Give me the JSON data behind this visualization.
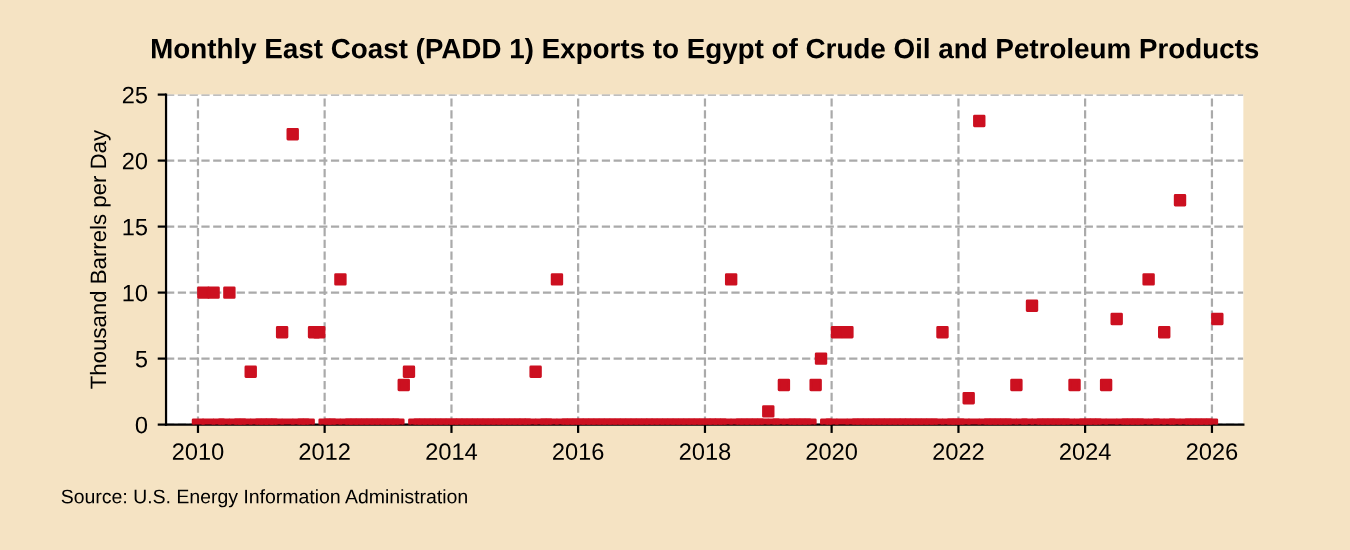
{
  "chart_data": {
    "type": "scatter",
    "title": "Monthly East Coast (PADD 1) Exports to Egypt of Crude Oil and Petroleum Products",
    "ylabel": "Thousand Barrels per Day",
    "annotations": [
      "Source: U.S. Energy Information Administration"
    ],
    "x": [
      "2010-01",
      "2010-02",
      "2010-03",
      "2010-04",
      "2010-05",
      "2010-06",
      "2010-07",
      "2010-08",
      "2010-09",
      "2010-10",
      "2010-11",
      "2010-12",
      "2011-01",
      "2011-02",
      "2011-03",
      "2011-04",
      "2011-05",
      "2011-06",
      "2011-07",
      "2011-08",
      "2011-09",
      "2011-10",
      "2011-11",
      "2011-12",
      "2012-01",
      "2012-02",
      "2012-03",
      "2012-04",
      "2012-05",
      "2012-06",
      "2012-07",
      "2012-08",
      "2012-09",
      "2012-10",
      "2012-11",
      "2012-12",
      "2013-01",
      "2013-02",
      "2013-03",
      "2013-04",
      "2013-05",
      "2013-06",
      "2013-07",
      "2013-08",
      "2013-09",
      "2013-10",
      "2013-11",
      "2013-12",
      "2014-01",
      "2014-02",
      "2014-03",
      "2014-04",
      "2014-05",
      "2014-06",
      "2014-07",
      "2014-08",
      "2014-09",
      "2014-10",
      "2014-11",
      "2014-12",
      "2015-01",
      "2015-02",
      "2015-03",
      "2015-04",
      "2015-05",
      "2015-06",
      "2015-07",
      "2015-08",
      "2015-09",
      "2015-10",
      "2015-11",
      "2015-12",
      "2016-01",
      "2016-02",
      "2016-03",
      "2016-04",
      "2016-05",
      "2016-06",
      "2016-07",
      "2016-08",
      "2016-09",
      "2016-10",
      "2016-11",
      "2016-12",
      "2017-01",
      "2017-02",
      "2017-03",
      "2017-04",
      "2017-05",
      "2017-06",
      "2017-07",
      "2017-08",
      "2017-09",
      "2017-10",
      "2017-11",
      "2017-12",
      "2018-01",
      "2018-02",
      "2018-03",
      "2018-04",
      "2018-05",
      "2018-06",
      "2018-07",
      "2018-08",
      "2018-09",
      "2018-10",
      "2018-11",
      "2018-12",
      "2019-01",
      "2019-02",
      "2019-03",
      "2019-04",
      "2019-05",
      "2019-06",
      "2019-07",
      "2019-08",
      "2019-09",
      "2019-10",
      "2019-11",
      "2019-12",
      "2020-01",
      "2020-02",
      "2020-03",
      "2020-04",
      "2020-05",
      "2020-06",
      "2020-07",
      "2020-08",
      "2020-09",
      "2020-10",
      "2020-11",
      "2020-12",
      "2021-01",
      "2021-02",
      "2021-03",
      "2021-04",
      "2021-05",
      "2021-06",
      "2021-07",
      "2021-08",
      "2021-09",
      "2021-10",
      "2021-11",
      "2021-12",
      "2022-01",
      "2022-02",
      "2022-03",
      "2022-04",
      "2022-05",
      "2022-06",
      "2022-07",
      "2022-08",
      "2022-09",
      "2022-10",
      "2022-11",
      "2022-12",
      "2023-01",
      "2023-02",
      "2023-03",
      "2023-04",
      "2023-05",
      "2023-06",
      "2023-07",
      "2023-08",
      "2023-09",
      "2023-10",
      "2023-11",
      "2023-12",
      "2024-01",
      "2024-02",
      "2024-03",
      "2024-04",
      "2024-05",
      "2024-06",
      "2024-07",
      "2024-08",
      "2024-09",
      "2024-10",
      "2024-11",
      "2024-12",
      "2025-01",
      "2025-02",
      "2025-03",
      "2025-04",
      "2025-05",
      "2025-06",
      "2025-07",
      "2025-08",
      "2025-09",
      "2025-10",
      "2025-11",
      "2025-12",
      "2026-01",
      "2026-02"
    ],
    "series": [
      {
        "color": "#cc1020",
        "values": [
          0,
          10,
          0,
          10,
          0,
          0,
          10,
          0,
          0,
          0,
          4,
          0,
          0,
          0,
          0,
          0,
          7,
          0,
          22,
          0,
          0,
          0,
          7,
          7,
          0,
          0,
          0,
          11,
          0,
          0,
          0,
          0,
          0,
          0,
          0,
          0,
          0,
          0,
          0,
          3,
          4,
          0,
          0,
          0,
          0,
          0,
          0,
          0,
          0,
          0,
          0,
          0,
          0,
          0,
          0,
          0,
          0,
          0,
          0,
          0,
          0,
          0,
          0,
          0,
          4,
          0,
          0,
          0,
          11,
          0,
          0,
          0,
          0,
          0,
          0,
          0,
          0,
          0,
          0,
          0,
          0,
          0,
          0,
          0,
          0,
          0,
          0,
          0,
          0,
          0,
          0,
          0,
          0,
          0,
          0,
          0,
          0,
          0,
          0,
          0,
          0,
          11,
          0,
          0,
          0,
          0,
          0,
          0,
          1,
          0,
          0,
          3,
          0,
          0,
          0,
          0,
          0,
          3,
          5,
          0,
          0,
          7,
          0,
          7,
          0,
          0,
          0,
          0,
          0,
          0,
          0,
          0,
          0,
          0,
          0,
          0,
          0,
          0,
          0,
          0,
          0,
          7,
          0,
          0,
          0,
          0,
          2,
          0,
          23,
          0,
          0,
          0,
          0,
          0,
          0,
          3,
          0,
          0,
          9,
          0,
          0,
          0,
          0,
          0,
          0,
          0,
          3,
          0,
          0,
          0,
          0,
          0,
          3,
          0,
          8,
          0,
          0,
          0,
          0,
          0,
          11,
          0,
          0,
          7,
          0,
          0,
          17,
          0,
          0,
          0,
          0,
          0,
          0,
          8
        ]
      }
    ],
    "xlim": [
      "2009-07",
      "2026-07"
    ],
    "xticks": [
      "2010",
      "2012",
      "2014",
      "2016",
      "2018",
      "2020",
      "2022",
      "2024",
      "2026"
    ],
    "ylim": [
      0,
      25
    ],
    "yticks": [
      0,
      5,
      10,
      15,
      20,
      25
    ],
    "grid": true,
    "marker": "square"
  }
}
